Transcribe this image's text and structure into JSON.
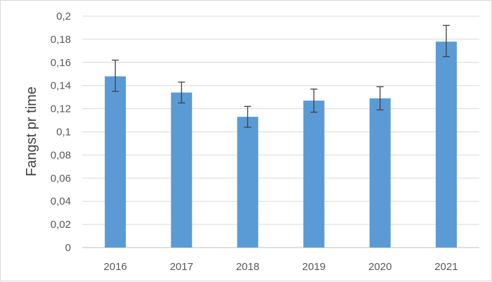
{
  "chart_data": {
    "type": "bar",
    "ylabel": "Fangst pr time",
    "categories": [
      "2016",
      "2017",
      "2018",
      "2019",
      "2020",
      "2021"
    ],
    "series": [
      {
        "values": [
          0.148,
          0.134,
          0.113,
          0.127,
          0.129,
          0.178
        ],
        "error_low": [
          0.135,
          0.125,
          0.104,
          0.117,
          0.119,
          0.165
        ],
        "error_high": [
          0.162,
          0.143,
          0.122,
          0.137,
          0.139,
          0.192
        ]
      }
    ],
    "y_ticks": [
      "0",
      "0,02",
      "0,04",
      "0,06",
      "0,08",
      "0,1",
      "0,12",
      "0,14",
      "0,16",
      "0,18",
      "0,2"
    ],
    "y_tick_values": [
      0,
      0.02,
      0.04,
      0.06,
      0.08,
      0.1,
      0.12,
      0.14,
      0.16,
      0.18,
      0.2
    ],
    "ylim": [
      0,
      0.2
    ],
    "grid": true,
    "legend": "none",
    "colors": {
      "bar": "#5b9bd5",
      "grid": "#d9d9d9",
      "error_bar": "#404040",
      "axis": "#bfbfbf"
    }
  }
}
